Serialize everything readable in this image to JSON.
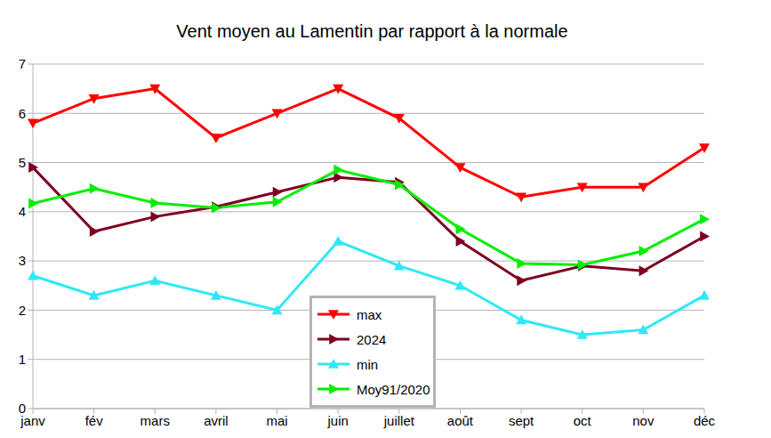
{
  "chart_data": {
    "type": "line",
    "title": "Vent moyen au Lamentin par rapport à la normale",
    "categories": [
      "janv",
      "fév",
      "mars",
      "avril",
      "mai",
      "juin",
      "juillet",
      "août",
      "sept",
      "oct",
      "nov",
      "déc"
    ],
    "series": [
      {
        "name": "max",
        "color": "#ff0000",
        "marker": "triangle-down",
        "values": [
          5.8,
          6.3,
          6.5,
          5.5,
          6.0,
          6.5,
          5.9,
          4.9,
          4.3,
          4.5,
          4.5,
          5.3
        ]
      },
      {
        "name": "2024",
        "color": "#7e0021",
        "marker": "triangle-right",
        "values": [
          4.9,
          3.6,
          3.9,
          4.1,
          4.4,
          4.7,
          4.6,
          3.4,
          2.6,
          2.9,
          2.8,
          3.5
        ]
      },
      {
        "name": "min",
        "color": "#2fe8f5",
        "marker": "triangle-up",
        "values": [
          2.7,
          2.3,
          2.6,
          2.3,
          2.0,
          3.4,
          2.9,
          2.5,
          1.8,
          1.5,
          1.6,
          2.3
        ]
      },
      {
        "name": "Moy91/2020",
        "color": "#00ee00",
        "marker": "triangle-right",
        "values": [
          4.17,
          4.47,
          4.18,
          4.08,
          4.2,
          4.85,
          4.55,
          3.65,
          2.95,
          2.92,
          3.2,
          3.85
        ]
      }
    ],
    "ylim": [
      0,
      7
    ],
    "yticks": [
      0,
      1,
      2,
      3,
      4,
      5,
      6,
      7
    ],
    "grid": true,
    "legend": "bottom"
  }
}
